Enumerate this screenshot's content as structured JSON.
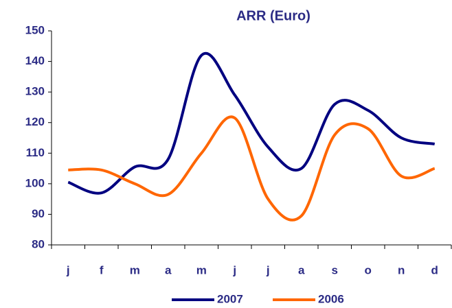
{
  "chart_data": {
    "type": "line",
    "title": "ARR (Euro)",
    "categories": [
      "j",
      "f",
      "m",
      "a",
      "m",
      "j",
      "j",
      "a",
      "s",
      "o",
      "n",
      "d"
    ],
    "series": [
      {
        "name": "2007",
        "color": "#000080",
        "values": [
          100.5,
          97,
          105.5,
          108,
          142,
          129,
          112,
          105,
          126,
          124,
          115,
          113
        ]
      },
      {
        "name": "2006",
        "color": "#ff6600",
        "values": [
          104.5,
          104.5,
          100,
          96.5,
          110,
          121.5,
          95,
          89.5,
          116,
          118,
          102.5,
          105
        ]
      }
    ],
    "ylim": [
      80,
      150
    ],
    "yticks": [
      80,
      90,
      100,
      110,
      120,
      130,
      140,
      150
    ],
    "smooth": true,
    "legend": "bottom"
  }
}
